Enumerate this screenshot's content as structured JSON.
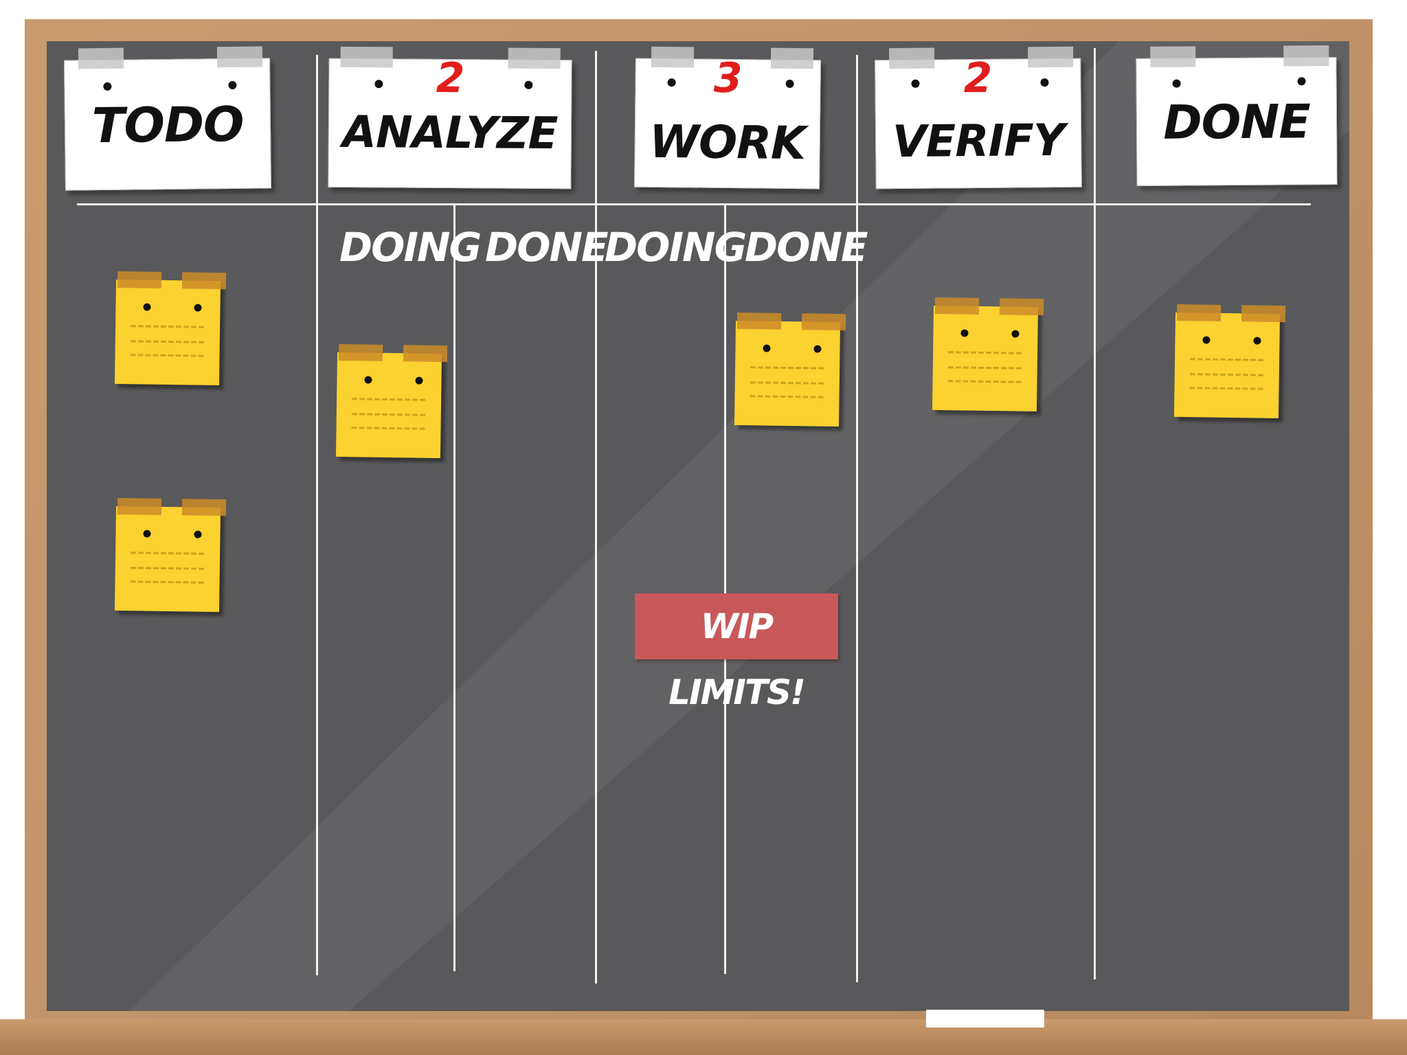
{
  "columns": [
    {
      "title": "TODO",
      "wip_limit": ""
    },
    {
      "title": "ANALYZE",
      "wip_limit": "2"
    },
    {
      "title": "WORK",
      "wip_limit": "3"
    },
    {
      "title": "VERIFY",
      "wip_limit": "2"
    },
    {
      "title": "DONE",
      "wip_limit": ""
    }
  ],
  "subcolumns": {
    "analyze_doing": "DOING",
    "analyze_done": "DONE",
    "work_doing": "DOING",
    "work_done": "DONE"
  },
  "callout": "WIP LIMITS!",
  "sticky_notes": [
    {
      "column": "TODO"
    },
    {
      "column": "TODO"
    },
    {
      "column": "ANALYZE",
      "sub": "DOING"
    },
    {
      "column": "WORK",
      "sub": "DONE"
    },
    {
      "column": "VERIFY"
    },
    {
      "column": "DONE"
    }
  ],
  "colors": {
    "board": "#59595b",
    "frame": "#c1956a",
    "sticky_note": "#fbd22f",
    "wip_number": "#e11d1d",
    "callout": "#c8595a"
  }
}
